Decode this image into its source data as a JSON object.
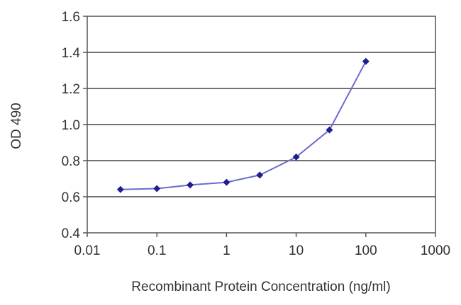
{
  "chart_data": {
    "type": "line",
    "title": "",
    "xlabel": "Recombinant Protein Concentration (ng/ml)",
    "ylabel": "OD 490",
    "x_scale": "log",
    "xlim": [
      0.01,
      1000
    ],
    "ylim": [
      0.4,
      1.6
    ],
    "x_ticks": [
      "0.01",
      "0.1",
      "1",
      "10",
      "100",
      "1000"
    ],
    "y_ticks": [
      "0.4",
      "0.6",
      "0.8",
      "1.0",
      "1.2",
      "1.4",
      "1.6"
    ],
    "grid": "horizontal",
    "legend": "none",
    "series": [
      {
        "color": "#6b6bd0",
        "marker_color": "#1f1f8f",
        "x": [
          0.03,
          0.1,
          0.3,
          1,
          3,
          10,
          30,
          100
        ],
        "y": [
          0.64,
          0.645,
          0.665,
          0.68,
          0.72,
          0.82,
          0.97,
          1.35
        ]
      }
    ]
  }
}
